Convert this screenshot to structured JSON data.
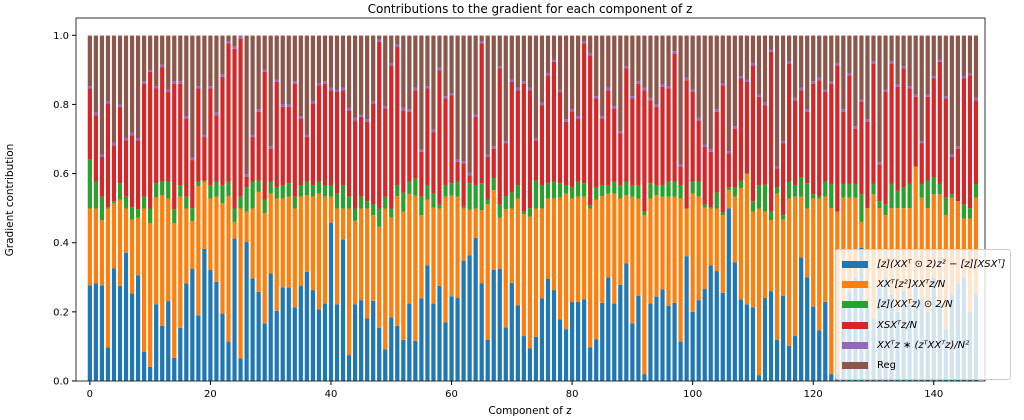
{
  "chart_data": {
    "type": "bar",
    "stacked": true,
    "title": "Contributions to the gradient for each component of z",
    "xlabel": "Component of z",
    "ylabel": "Gradient contribution",
    "ylim": [
      0,
      1.05
    ],
    "xlim": [
      -2.3,
      148.5
    ],
    "x_ticks": [
      "0",
      "20",
      "40",
      "60",
      "80",
      "100",
      "120",
      "140"
    ],
    "x_tick_values": [
      0,
      20,
      40,
      60,
      80,
      100,
      120,
      140
    ],
    "y_ticks": [
      "0.0",
      "0.2",
      "0.4",
      "0.6",
      "0.8",
      "1.0"
    ],
    "y_tick_values": [
      0,
      0.2,
      0.4,
      0.6,
      0.8,
      1.0
    ],
    "legend_position": "lower-right",
    "n_bars": 148,
    "note": "Stack boundaries given as cumulative tops (data units); Reg fills from purple top to 1.0",
    "series": [
      {
        "name": "[z](XXᵀ ⊙ 2)z² − [z][XSXᵀ]",
        "color": "#1f77b4",
        "cumulative_top": [
          0.277,
          0.282,
          0.277,
          0.097,
          0.326,
          0.275,
          0.371,
          0.253,
          0.306,
          0.085,
          0.041,
          0.222,
          0.16,
          0.231,
          0.067,
          0.154,
          0.282,
          0.324,
          0.19,
          0.382,
          0.321,
          0.287,
          0.195,
          0.114,
          0.412,
          0.065,
          0.402,
          0.297,
          0.258,
          0.167,
          0.311,
          0.203,
          0.271,
          0.271,
          0.213,
          0.275,
          0.316,
          0.263,
          0.207,
          0.224,
          0.458,
          0.222,
          0.41,
          0.075,
          0.222,
          0.234,
          0.181,
          0.232,
          0.154,
          0.092,
          0.184,
          0.159,
          0.119,
          0.224,
          0.116,
          0.239,
          0.335,
          0.224,
          0.275,
          0.17,
          0.245,
          0.24,
          0.348,
          0.364,
          0.414,
          0.282,
          0.119,
          0.322,
          0.324,
          0.155,
          0.284,
          0.219,
          0.13,
          0.095,
          0.128,
          0.239,
          0.295,
          0.263,
          0.178,
          0.15,
          0.229,
          0.229,
          0.236,
          0.097,
          0.121,
          0.226,
          0.3,
          0.224,
          0.278,
          0.34,
          0.167,
          0.246,
          0.02,
          0.224,
          0.244,
          0.265,
          0.218,
          0.226,
          0.114,
          0.361,
          0.2,
          0.234,
          0.266,
          0.335,
          0.318,
          0.255,
          0.499,
          0.343,
          0.236,
          0.222,
          0.213,
          0.017,
          0.24,
          0.26,
          0.119,
          0.246,
          0.102,
          0.13,
          0.357,
          0.3,
          0.215,
          0.146,
          0.229,
          0.02,
          0.02,
          0.22,
          0.26,
          0.3,
          0.385,
          0.22,
          0.18,
          0.27,
          0.3,
          0.25,
          0.2,
          0.26,
          0.22,
          0.28,
          0.24,
          0.2,
          0.3,
          0.22,
          0.15,
          0.25,
          0.28,
          0.3,
          0.2,
          0.25
        ]
      },
      {
        "name": "XXᵀ[z²]XXᵀz/N",
        "color": "#ff7f0e",
        "cumulative_top": [
          0.499,
          0.499,
          0.465,
          0.499,
          0.514,
          0.525,
          0.499,
          0.467,
          0.473,
          0.499,
          0.456,
          0.531,
          0.538,
          0.528,
          0.456,
          0.533,
          0.499,
          0.463,
          0.564,
          0.577,
          0.528,
          0.533,
          0.514,
          0.535,
          0.46,
          0.499,
          0.49,
          0.499,
          0.547,
          0.485,
          0.542,
          0.528,
          0.528,
          0.533,
          0.499,
          0.533,
          0.538,
          0.533,
          0.542,
          0.533,
          0.533,
          0.499,
          0.499,
          0.499,
          0.463,
          0.499,
          0.499,
          0.48,
          0.446,
          0.499,
          0.473,
          0.535,
          0.49,
          0.541,
          0.536,
          0.48,
          0.525,
          0.502,
          0.499,
          0.533,
          0.536,
          0.533,
          0.499,
          0.496,
          0.499,
          0.494,
          0.511,
          0.552,
          0.472,
          0.497,
          0.499,
          0.528,
          0.483,
          0.475,
          0.499,
          0.499,
          0.528,
          0.528,
          0.53,
          0.542,
          0.528,
          0.533,
          0.533,
          0.499,
          0.525,
          0.535,
          0.542,
          0.542,
          0.528,
          0.538,
          0.533,
          0.528,
          0.48,
          0.528,
          0.538,
          0.533,
          0.533,
          0.533,
          0.528,
          0.499,
          0.542,
          0.533,
          0.502,
          0.499,
          0.499,
          0.48,
          0.552,
          0.533,
          0.558,
          0.6,
          0.49,
          0.499,
          0.49,
          0.465,
          0.542,
          0.467,
          0.528,
          0.533,
          0.533,
          0.499,
          0.528,
          0.528,
          0.533,
          0.5,
          0.49,
          0.53,
          0.53,
          0.53,
          0.46,
          0.5,
          0.54,
          0.5,
          0.48,
          0.5,
          0.5,
          0.5,
          0.5,
          0.62,
          0.53,
          0.5,
          0.54,
          0.54,
          0.48,
          0.53,
          0.52,
          0.47,
          0.47,
          0.53
        ]
      },
      {
        "name": "[z](XXᵀz) ⊙ 2/N",
        "color": "#2ca02c",
        "cumulative_top": [
          0.64,
          0.577,
          0.533,
          0.503,
          0.52,
          0.572,
          0.533,
          0.503,
          0.497,
          0.533,
          0.499,
          0.572,
          0.577,
          0.577,
          0.497,
          0.567,
          0.533,
          0.5,
          0.577,
          0.58,
          0.567,
          0.577,
          0.567,
          0.577,
          0.499,
          0.533,
          0.56,
          0.577,
          0.58,
          0.525,
          0.577,
          0.56,
          0.567,
          0.572,
          0.533,
          0.567,
          0.577,
          0.567,
          0.577,
          0.567,
          0.567,
          0.542,
          0.567,
          0.533,
          0.499,
          0.533,
          0.52,
          0.512,
          0.499,
          0.533,
          0.499,
          0.567,
          0.545,
          0.577,
          0.585,
          0.533,
          0.567,
          0.542,
          0.51,
          0.567,
          0.572,
          0.577,
          0.504,
          0.572,
          0.567,
          0.572,
          0.525,
          0.587,
          0.51,
          0.535,
          0.545,
          0.567,
          0.49,
          0.5,
          0.58,
          0.567,
          0.572,
          0.577,
          0.572,
          0.567,
          0.56,
          0.577,
          0.572,
          0.508,
          0.56,
          0.567,
          0.567,
          0.577,
          0.567,
          0.577,
          0.567,
          0.567,
          0.49,
          0.572,
          0.567,
          0.567,
          0.577,
          0.577,
          0.567,
          0.499,
          0.577,
          0.577,
          0.51,
          0.503,
          0.545,
          0.487,
          0.56,
          0.56,
          0.58,
          0.6,
          0.52,
          0.567,
          0.568,
          0.49,
          0.56,
          0.48,
          0.577,
          0.567,
          0.59,
          0.572,
          0.54,
          0.535,
          0.577,
          0.57,
          0.49,
          0.57,
          0.57,
          0.57,
          0.54,
          0.5,
          0.57,
          0.52,
          0.51,
          0.57,
          0.55,
          0.56,
          0.57,
          0.62,
          0.57,
          0.58,
          0.59,
          0.57,
          0.53,
          0.54,
          0.52,
          0.51,
          0.5,
          0.57
        ]
      },
      {
        "name": "XSXᵀz/N",
        "color": "#d62728",
        "cumulative_top": [
          0.846,
          0.769,
          0.648,
          0.803,
          0.682,
          0.793,
          0.696,
          0.711,
          0.696,
          0.86,
          0.894,
          0.846,
          0.908,
          0.836,
          0.86,
          0.86,
          0.759,
          0.639,
          0.846,
          0.706,
          0.846,
          0.769,
          0.88,
          0.976,
          0.961,
          0.99,
          0.591,
          0.706,
          0.779,
          0.894,
          0.672,
          0.865,
          0.793,
          0.793,
          0.86,
          0.759,
          0.706,
          0.803,
          0.855,
          0.86,
          0.841,
          0.836,
          0.841,
          0.783,
          0.754,
          0.764,
          0.75,
          0.803,
          0.981,
          0.788,
          0.913,
          0.966,
          0.783,
          0.779,
          0.841,
          0.663,
          0.846,
          0.72,
          0.899,
          0.817,
          0.826,
          0.634,
          0.629,
          0.595,
          0.764,
          0.976,
          0.648,
          0.672,
          0.904,
          0.687,
          0.865,
          0.841,
          0.86,
          0.841,
          0.696,
          0.798,
          0.884,
          0.923,
          0.836,
          0.75,
          0.78,
          0.759,
          0.976,
          0.942,
          0.817,
          0.759,
          0.841,
          0.788,
          0.716,
          0.904,
          0.817,
          0.86,
          0.841,
          0.812,
          0.793,
          0.851,
          0.846,
          0.947,
          0.619,
          0.87,
          0.836,
          0.754,
          0.677,
          0.663,
          0.779,
          0.855,
          0.658,
          0.73,
          0.875,
          0.865,
          0.913,
          0.822,
          0.798,
          0.952,
          0.615,
          0.687,
          0.918,
          0.812,
          0.841,
          0.779,
          0.86,
          0.87,
          0.836,
          0.86,
          0.913,
          0.779,
          0.884,
          0.73,
          0.807,
          0.75,
          0.918,
          0.626,
          0.836,
          0.918,
          0.851,
          0.904,
          0.846,
          0.822,
          0.687,
          0.822,
          0.875,
          0.923,
          0.817,
          0.648,
          0.672,
          0.875,
          0.884,
          0.812
        ]
      },
      {
        "name": "XXᵀz ∗ (zᵀXXᵀz)/N²",
        "color": "#9467bd",
        "value_each_bar": 0.007
      },
      {
        "name": "Reg",
        "color": "#8c564b",
        "cumulative_top_each_bar": 1.0
      }
    ]
  }
}
